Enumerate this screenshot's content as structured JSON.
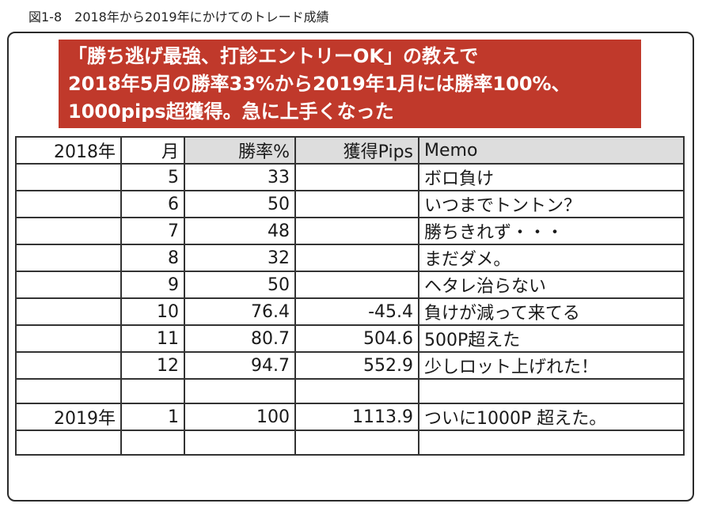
{
  "figure_caption": "図1-8　2018年から2019年にかけてのトレード成績",
  "banner": {
    "lines": [
      "「勝ち逃げ最強、打診エントリーOK」の教えで",
      "2018年5月の勝率33%から2019年1月には勝率100%、",
      "1000pips超獲得。急に上手くなった"
    ]
  },
  "table": {
    "headers": [
      "2018年",
      "月",
      "勝率%",
      "獲得Pips",
      "Memo"
    ],
    "rows": [
      [
        "",
        "5",
        "33",
        "",
        "ボロ負け"
      ],
      [
        "",
        "6",
        "50",
        "",
        "いつまでトントン？"
      ],
      [
        "",
        "7",
        "48",
        "",
        "勝ちきれず・・・"
      ],
      [
        "",
        "8",
        "32",
        "",
        "まだダメ。"
      ],
      [
        "",
        "9",
        "50",
        "",
        "ヘタレ治らない"
      ],
      [
        "",
        "10",
        "76.4",
        "-45.4",
        "負けが減って来てる"
      ],
      [
        "",
        "11",
        "80.7",
        "504.6",
        "500P超えた"
      ],
      [
        "",
        "12",
        "94.7",
        "552.9",
        "少しロット上げれた！"
      ],
      [
        "",
        "",
        "",
        "",
        ""
      ],
      [
        "2019年",
        "1",
        "100",
        "1113.9",
        "ついに1000P 超えた。"
      ],
      [
        "",
        "",
        "",
        "",
        ""
      ]
    ]
  },
  "colors": {
    "banner_bg": "#c0392b",
    "banner_text": "#ffffff",
    "header_shade": "#dddddd",
    "border": "#333333"
  }
}
